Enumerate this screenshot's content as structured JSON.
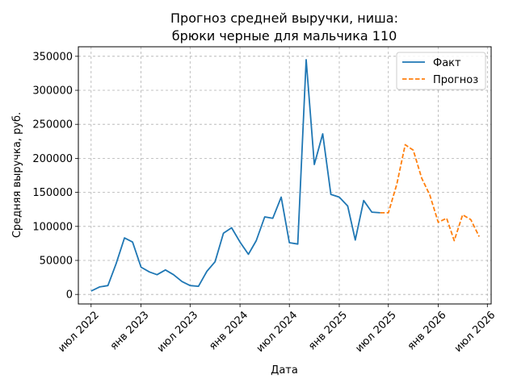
{
  "chart_data": {
    "type": "line",
    "title_lines": [
      "Прогноз средней выручки, ниша:",
      "брюки черные для мальчика 110"
    ],
    "xlabel": "Дата",
    "ylabel": "Средняя выручка, руб.",
    "ylim": [
      -14000,
      364000
    ],
    "xlim": [
      "2022-05-15",
      "2026-07-15"
    ],
    "x_ticks": [
      {
        "date": "2022-07-01",
        "label": "июл 2022"
      },
      {
        "date": "2023-01-01",
        "label": "янв 2023"
      },
      {
        "date": "2023-07-01",
        "label": "июл 2023"
      },
      {
        "date": "2024-01-01",
        "label": "янв 2024"
      },
      {
        "date": "2024-07-01",
        "label": "июл 2024"
      },
      {
        "date": "2025-01-01",
        "label": "янв 2025"
      },
      {
        "date": "2025-07-01",
        "label": "июл 2025"
      },
      {
        "date": "2026-01-01",
        "label": "янв 2026"
      },
      {
        "date": "2026-07-01",
        "label": "июл 2026"
      }
    ],
    "y_ticks": [
      {
        "value": 0,
        "label": "0"
      },
      {
        "value": 50000,
        "label": "50000"
      },
      {
        "value": 100000,
        "label": "100000"
      },
      {
        "value": 150000,
        "label": "150000"
      },
      {
        "value": 200000,
        "label": "200000"
      },
      {
        "value": 250000,
        "label": "250000"
      },
      {
        "value": 300000,
        "label": "300000"
      },
      {
        "value": 350000,
        "label": "350000"
      }
    ],
    "grid": true,
    "legend_position": "top-right",
    "series": [
      {
        "name": "Факт",
        "color": "#1f77b4",
        "dash": "solid",
        "points": [
          {
            "x": "2022-07-01",
            "y": 5000
          },
          {
            "x": "2022-08-01",
            "y": 11000
          },
          {
            "x": "2022-09-01",
            "y": 13000
          },
          {
            "x": "2022-10-01",
            "y": 45000
          },
          {
            "x": "2022-11-01",
            "y": 83000
          },
          {
            "x": "2022-12-01",
            "y": 77000
          },
          {
            "x": "2023-01-01",
            "y": 40000
          },
          {
            "x": "2023-02-01",
            "y": 33000
          },
          {
            "x": "2023-03-01",
            "y": 29000
          },
          {
            "x": "2023-04-01",
            "y": 36000
          },
          {
            "x": "2023-05-01",
            "y": 29000
          },
          {
            "x": "2023-06-01",
            "y": 19000
          },
          {
            "x": "2023-07-01",
            "y": 13000
          },
          {
            "x": "2023-08-01",
            "y": 12000
          },
          {
            "x": "2023-09-01",
            "y": 34000
          },
          {
            "x": "2023-10-01",
            "y": 48000
          },
          {
            "x": "2023-11-01",
            "y": 90000
          },
          {
            "x": "2023-12-01",
            "y": 98000
          },
          {
            "x": "2024-01-01",
            "y": 77000
          },
          {
            "x": "2024-02-01",
            "y": 59000
          },
          {
            "x": "2024-03-01",
            "y": 79000
          },
          {
            "x": "2024-04-01",
            "y": 114000
          },
          {
            "x": "2024-05-01",
            "y": 112000
          },
          {
            "x": "2024-06-01",
            "y": 143000
          },
          {
            "x": "2024-07-01",
            "y": 76000
          },
          {
            "x": "2024-08-01",
            "y": 74000
          },
          {
            "x": "2024-09-01",
            "y": 345000
          },
          {
            "x": "2024-10-01",
            "y": 191000
          },
          {
            "x": "2024-11-01",
            "y": 236000
          },
          {
            "x": "2024-12-01",
            "y": 147000
          },
          {
            "x": "2025-01-01",
            "y": 143000
          },
          {
            "x": "2025-02-01",
            "y": 130000
          },
          {
            "x": "2025-03-01",
            "y": 80000
          },
          {
            "x": "2025-04-01",
            "y": 138000
          },
          {
            "x": "2025-05-01",
            "y": 121000
          },
          {
            "x": "2025-06-01",
            "y": 120000
          }
        ]
      },
      {
        "name": "Прогноз",
        "color": "#ff7f0e",
        "dash": "dashed",
        "points": [
          {
            "x": "2025-06-01",
            "y": 120000
          },
          {
            "x": "2025-07-01",
            "y": 120000
          },
          {
            "x": "2025-08-01",
            "y": 162000
          },
          {
            "x": "2025-09-01",
            "y": 220000
          },
          {
            "x": "2025-10-01",
            "y": 212000
          },
          {
            "x": "2025-11-01",
            "y": 171000
          },
          {
            "x": "2025-12-01",
            "y": 146000
          },
          {
            "x": "2026-01-01",
            "y": 106000
          },
          {
            "x": "2026-02-01",
            "y": 112000
          },
          {
            "x": "2026-03-01",
            "y": 79000
          },
          {
            "x": "2026-04-01",
            "y": 117000
          },
          {
            "x": "2026-05-01",
            "y": 110000
          },
          {
            "x": "2026-06-01",
            "y": 85000
          }
        ]
      }
    ]
  }
}
